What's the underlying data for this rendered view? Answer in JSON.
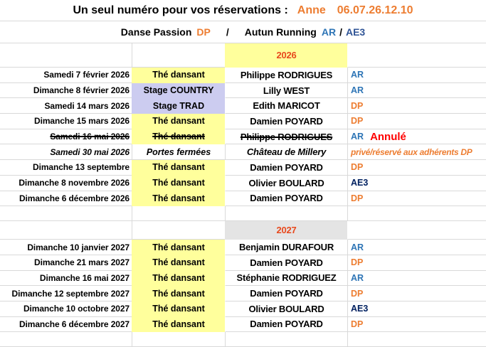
{
  "header": {
    "title": "Un seul numéro pour vos réservations :",
    "contact_name": "Anne",
    "phone": "06.07.26.12.10"
  },
  "subheader": {
    "club1_name": "Danse Passion",
    "club1_code": "DP",
    "slash1": "/",
    "club2_name": "Autun Running",
    "club2_code": "AR",
    "slash2": "/",
    "club3_code": "AE3"
  },
  "colors": {
    "orange_accent": "#ED7D31",
    "year_text": "#E8491D",
    "cancel_red": "#FF0000",
    "ar_blue": "#2E75B6",
    "ae3_navy": "#002060",
    "yellow_fill": "#FFFF9C",
    "lavender_fill": "#CCCCF0",
    "gray_fill": "#E4E4E4",
    "gridline": "#D9D9D9"
  },
  "sections": [
    {
      "year": "2026",
      "year_fill": "yellow",
      "rows": [
        {
          "date": "Samedi 7 février 2026",
          "event": "Thé dansant",
          "event_fill": "yellow",
          "name": "Philippe RODRIGUES",
          "org": "AR",
          "org_color": "ar"
        },
        {
          "date": "Dimanche 8 février 2026",
          "event": "Stage COUNTRY",
          "event_fill": "lavender",
          "name": "Lilly WEST",
          "org": "AR",
          "org_color": "ar"
        },
        {
          "date": "Samedi 14 mars 2026",
          "event": "Stage TRAD",
          "event_fill": "lavender",
          "name": "Edith MARICOT",
          "org": "DP",
          "org_color": "dp"
        },
        {
          "date": "Dimanche 15 mars 2026",
          "event": "Thé dansant",
          "event_fill": "yellow",
          "name": "Damien POYARD",
          "org": "DP",
          "org_color": "dp"
        },
        {
          "date": "Samedi 16 mai 2026",
          "event": "Thé dansant",
          "event_fill": "yellow",
          "name": "Philippe RODRIGUES",
          "org": "AR",
          "org_color": "ar",
          "struck": true,
          "note": "Annulé"
        },
        {
          "date": "Samedi 30 mai 2026",
          "event": "Portes fermées",
          "event_fill": "none",
          "name": "Château de Millery",
          "org": "privé/réservé aux adhérents DP",
          "org_color": "dp",
          "italic": true
        },
        {
          "date": "Dimanche 13 septembre",
          "event": "Thé dansant",
          "event_fill": "yellow",
          "name": "Damien POYARD",
          "org": "DP",
          "org_color": "dp"
        },
        {
          "date": "Dimanche 8 novembre 2026",
          "event": "Thé dansant",
          "event_fill": "yellow",
          "name": "Olivier BOULARD",
          "org": "AE3",
          "org_color": "ae3"
        },
        {
          "date": "Dimanche 6 décembre 2026",
          "event": "Thé dansant",
          "event_fill": "yellow",
          "name": "Damien POYARD",
          "org": "DP",
          "org_color": "dp"
        }
      ]
    },
    {
      "year": "2027",
      "year_fill": "gray",
      "rows": [
        {
          "date": "Dimanche 10 janvier 2027",
          "event": "Thé dansant",
          "event_fill": "yellow",
          "name": "Benjamin DURAFOUR",
          "org": "AR",
          "org_color": "ar"
        },
        {
          "date": "Dimanche 21 mars 2027",
          "event": "Thé dansant",
          "event_fill": "yellow",
          "name": "Damien POYARD",
          "org": "DP",
          "org_color": "dp"
        },
        {
          "date": "Dimanche 16 mai 2027",
          "event": "Thé dansant",
          "event_fill": "yellow",
          "name": "Stéphanie RODRIGUEZ",
          "org": "AR",
          "org_color": "ar"
        },
        {
          "date": "Dimanche 12 septembre 2027",
          "event": "Thé dansant",
          "event_fill": "yellow",
          "name": "Damien POYARD",
          "org": "DP",
          "org_color": "dp"
        },
        {
          "date": "Dimanche 10 octobre 2027",
          "event": "Thé dansant",
          "event_fill": "yellow",
          "name": "Olivier BOULARD",
          "org": "AE3",
          "org_color": "ae3"
        },
        {
          "date": "Dimanche 6 décembre 2027",
          "event": "Thé dansant",
          "event_fill": "yellow",
          "name": "Damien POYARD",
          "org": "DP",
          "org_color": "dp"
        }
      ]
    }
  ]
}
